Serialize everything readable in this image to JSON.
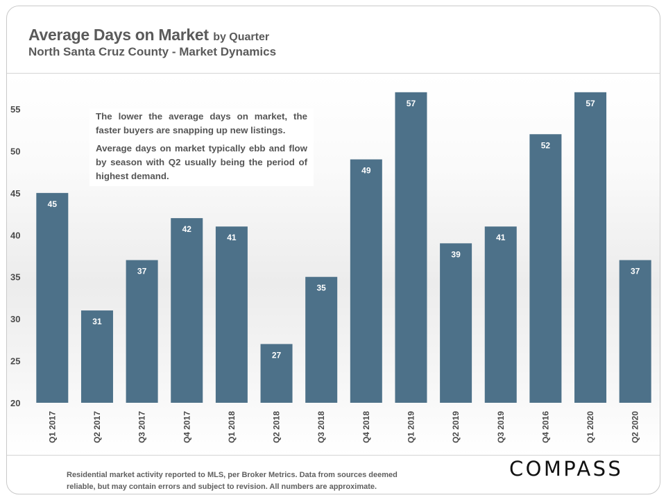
{
  "header": {
    "title": "Average Days on Market",
    "title_suffix": "by Quarter",
    "subtitle": "North Santa Cruz County - Market Dynamics"
  },
  "annotation": {
    "paragraph_1": "The lower the average days on market, the faster buyers are snapping up new listings.",
    "paragraph_2": "Average days on market typically ebb and flow by season with Q2 usually being the period of highest demand."
  },
  "footer": {
    "note": "Residential market activity reported to MLS, per Broker Metrics. Data from sources deemed reliable, but may contain errors and subject to revision. All numbers are approximate.",
    "brand": "COMPASS"
  },
  "chart_data": {
    "type": "bar",
    "title": "Average Days on Market by Quarter",
    "categories": [
      "Q1 2017",
      "Q2 2017",
      "Q3 2017",
      "Q4 2017",
      "Q1 2018",
      "Q2 2018",
      "Q3 2018",
      "Q4 2018",
      "Q1 2019",
      "Q2 2019",
      "Q3 2019",
      "Q4 2016",
      "Q1 2020",
      "Q2 2020"
    ],
    "values": [
      45,
      31,
      37,
      42,
      41,
      27,
      35,
      49,
      57,
      39,
      41,
      52,
      57,
      37
    ],
    "data_labels": [
      "45",
      "31",
      "37",
      "42",
      "41",
      "27",
      "35",
      "49",
      "57",
      "39",
      "41",
      "52",
      "57",
      "37"
    ],
    "y_ticks": [
      "20",
      "25",
      "30",
      "35",
      "40",
      "45",
      "50",
      "55"
    ],
    "ylim": [
      20,
      57
    ],
    "xlabel": "",
    "ylabel": "",
    "grid": false,
    "legend": "none",
    "colors": {
      "bar": "#4d7189",
      "data_label": "#ffffff",
      "axis_text": "#4a4a4a"
    }
  }
}
